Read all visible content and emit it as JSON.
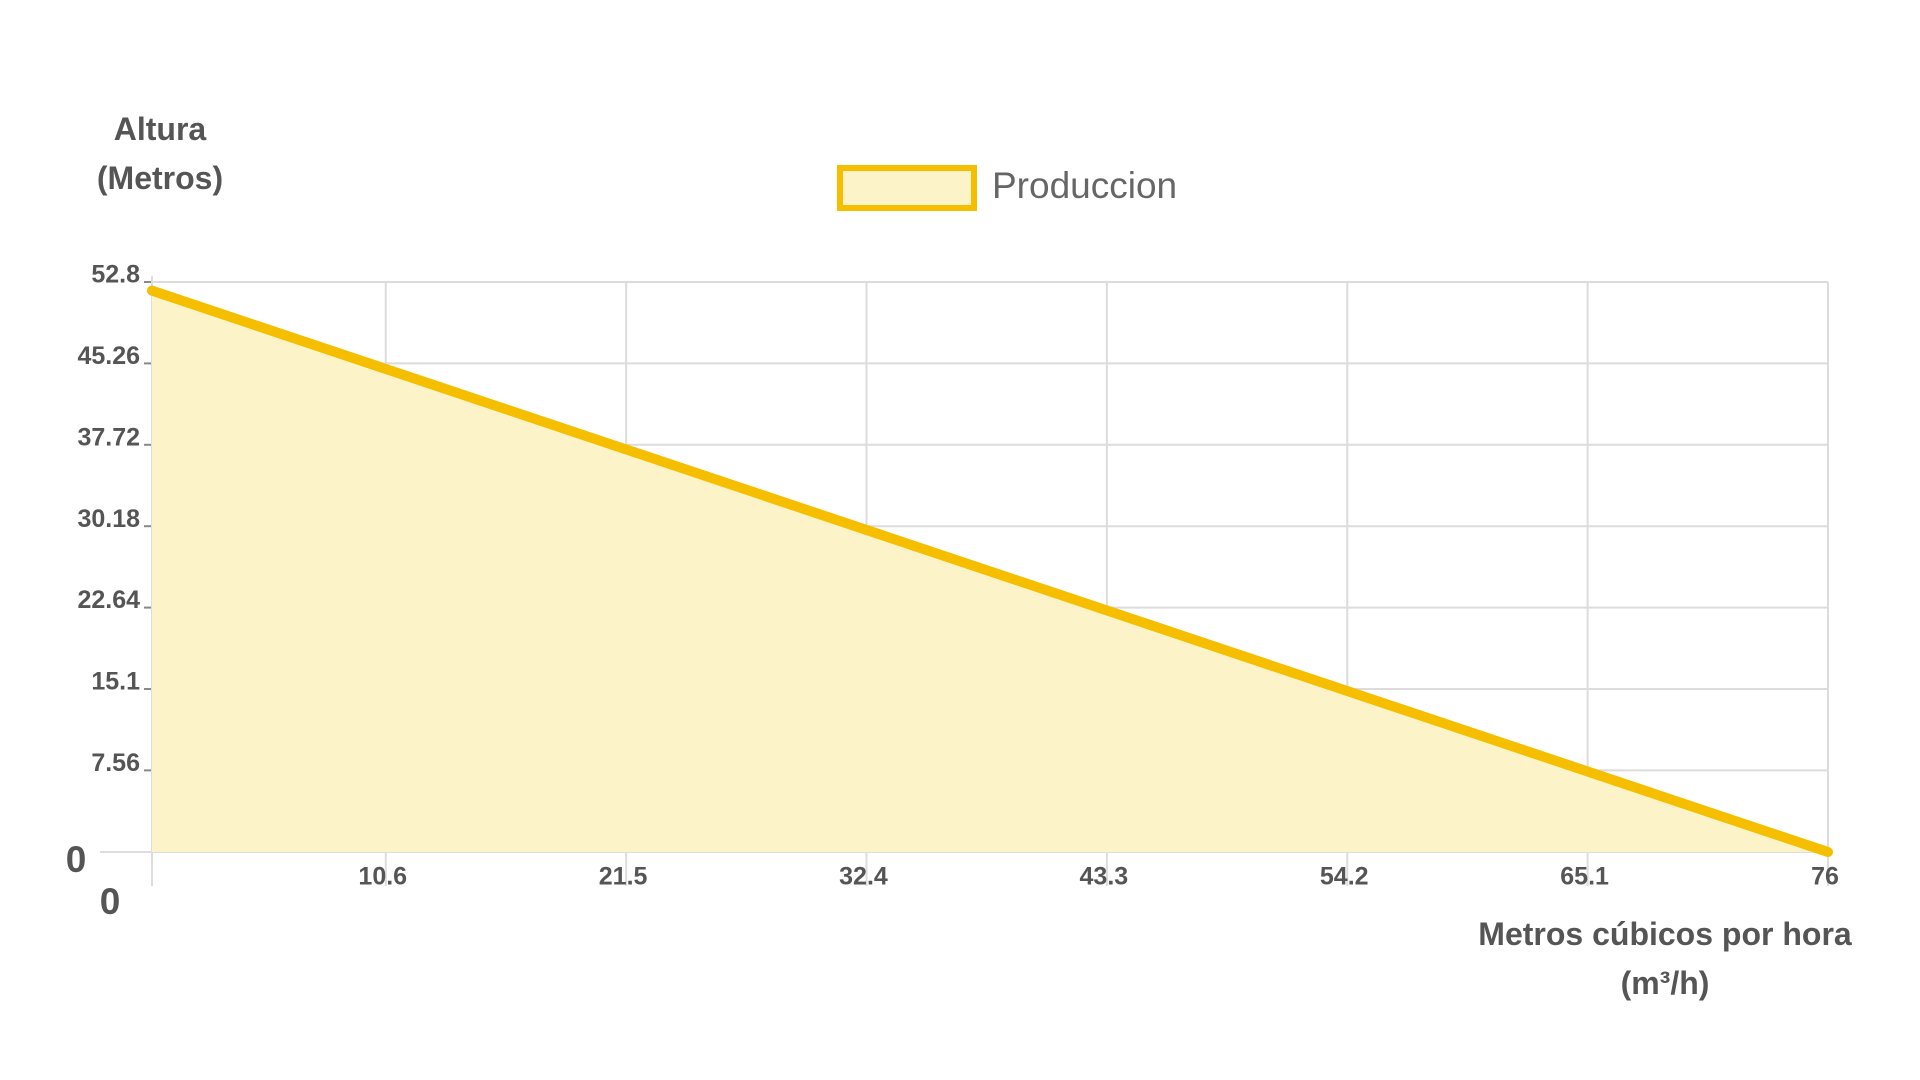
{
  "chart_data": {
    "type": "area",
    "ylabel": "Altura (Metros)",
    "xlabel": "Metros cúbicos por hora (m³/h)",
    "x": [
      0,
      76
    ],
    "series": [
      {
        "name": "Produccion",
        "color": "#f5bf00",
        "fill": "#fdf3c8",
        "values": [
          52,
          0
        ]
      }
    ],
    "xlim": [
      0,
      76
    ],
    "xticks": [
      0,
      10.6,
      21.5,
      32.4,
      43.3,
      54.2,
      65.1,
      76
    ],
    "ylim": [
      0,
      52.8
    ],
    "yticks": [
      0,
      7.56,
      15.1,
      22.64,
      30.18,
      37.72,
      45.26,
      52.8
    ],
    "grid": true,
    "legend": "top"
  }
}
